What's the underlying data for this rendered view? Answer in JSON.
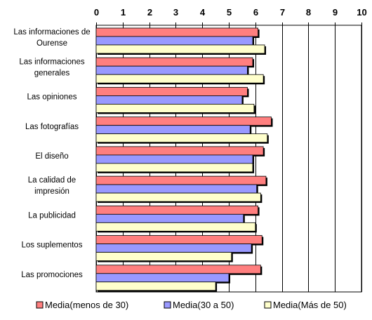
{
  "chart_data": {
    "type": "bar",
    "orientation": "horizontal",
    "title": "",
    "xlabel": "",
    "ylabel": "",
    "xlim": [
      0,
      10
    ],
    "x_ticks": [
      "0",
      "1",
      "2",
      "3",
      "4",
      "5",
      "6",
      "7",
      "8",
      "9",
      "10"
    ],
    "x_axis_position": "top",
    "grid": true,
    "legend_position": "bottom",
    "categories": [
      "Las informaciones de Ourense",
      "Las informaciones generales",
      "Las opiniones",
      "Las fotografías",
      "El diseño",
      "La calidad de impresión",
      "La publicidad",
      "Los suplementos",
      "Las promociones"
    ],
    "category_lines": [
      [
        "Las informaciones de",
        "Ourense"
      ],
      [
        "Las informaciones",
        "generales"
      ],
      [
        "Las opiniones"
      ],
      [
        "Las fotografías"
      ],
      [
        "El diseño"
      ],
      [
        "La calidad de",
        "impresión"
      ],
      [
        "La publicidad"
      ],
      [
        "Los suplementos"
      ],
      [
        "Las promociones"
      ]
    ],
    "series": [
      {
        "name": "Media(menos de 30)",
        "color": "#ff7f7f",
        "values": [
          6.1,
          5.9,
          5.7,
          6.6,
          6.3,
          6.4,
          6.1,
          6.25,
          6.2
        ]
      },
      {
        "name": "Media(30 a 50)",
        "color": "#9999ff",
        "values": [
          5.9,
          5.7,
          5.5,
          5.8,
          5.9,
          6.05,
          5.55,
          5.85,
          5.0
        ]
      },
      {
        "name": "Media(Más de 50)",
        "color": "#ffffcc",
        "values": [
          6.35,
          6.3,
          5.95,
          6.45,
          5.9,
          6.2,
          6.0,
          5.1,
          4.5
        ]
      }
    ]
  }
}
